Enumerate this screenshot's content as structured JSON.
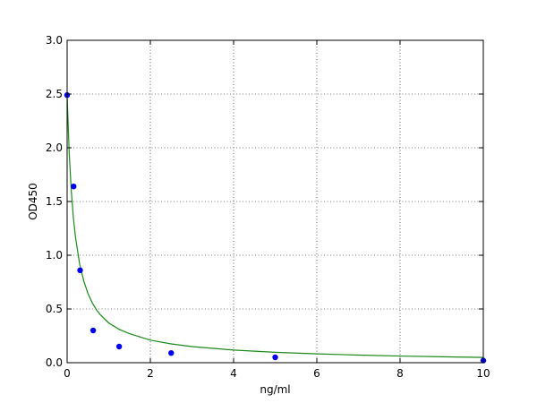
{
  "chart_data": {
    "type": "scatter",
    "xlabel": "ng/ml",
    "ylabel": "OD450",
    "xlim": [
      0,
      10
    ],
    "ylim": [
      0,
      3.0
    ],
    "x_ticks": [
      0,
      2,
      4,
      6,
      8,
      10
    ],
    "x_tick_labels": [
      "0",
      "2",
      "4",
      "6",
      "8",
      "10"
    ],
    "y_ticks": [
      0,
      0.5,
      1.0,
      1.5,
      2.0,
      2.5,
      3.0
    ],
    "y_tick_labels": [
      "0.0",
      "0.5",
      "1.0",
      "1.5",
      "2.0",
      "2.5",
      "3.0"
    ],
    "grid": true,
    "series": [
      {
        "kind": "scatter",
        "color": "#0000ee",
        "x": [
          0,
          0.156,
          0.312,
          0.625,
          1.25,
          2.5,
          5,
          10
        ],
        "y": [
          2.49,
          1.64,
          0.86,
          0.3,
          0.15,
          0.09,
          0.05,
          0.02
        ]
      },
      {
        "kind": "line",
        "color": "#1a8a1a",
        "x": [
          0,
          0.05,
          0.1,
          0.15,
          0.2,
          0.3,
          0.4,
          0.5,
          0.6,
          0.7,
          0.8,
          1.0,
          1.25,
          1.5,
          2.0,
          2.5,
          3.0,
          4.0,
          5.0,
          6.0,
          7.0,
          8.0,
          9.0,
          10.0
        ],
        "y": [
          2.49,
          1.95,
          1.6,
          1.35,
          1.17,
          0.92,
          0.76,
          0.645,
          0.56,
          0.495,
          0.445,
          0.37,
          0.31,
          0.27,
          0.21,
          0.175,
          0.15,
          0.118,
          0.097,
          0.082,
          0.071,
          0.062,
          0.055,
          0.049
        ]
      }
    ]
  }
}
